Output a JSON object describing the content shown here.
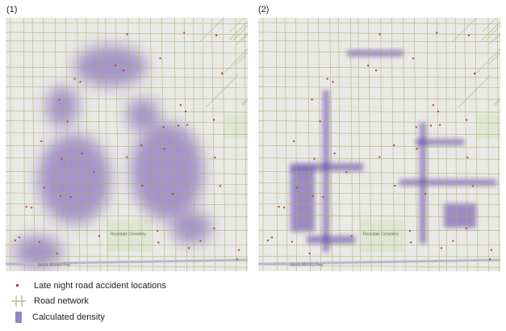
{
  "panels": [
    {
      "label": "(1)",
      "map_labels": {
        "cemetery": "Rosedale Cemetery",
        "freeway": "Santa Monica Fwy"
      }
    },
    {
      "label": "(2)",
      "map_labels": {
        "cemetery": "Rosedale Cemetery",
        "freeway": "Santa Monica Fwy"
      }
    }
  ],
  "legend": {
    "items": [
      "Late night road accident locations",
      "Road network",
      "Calculated density"
    ]
  }
}
